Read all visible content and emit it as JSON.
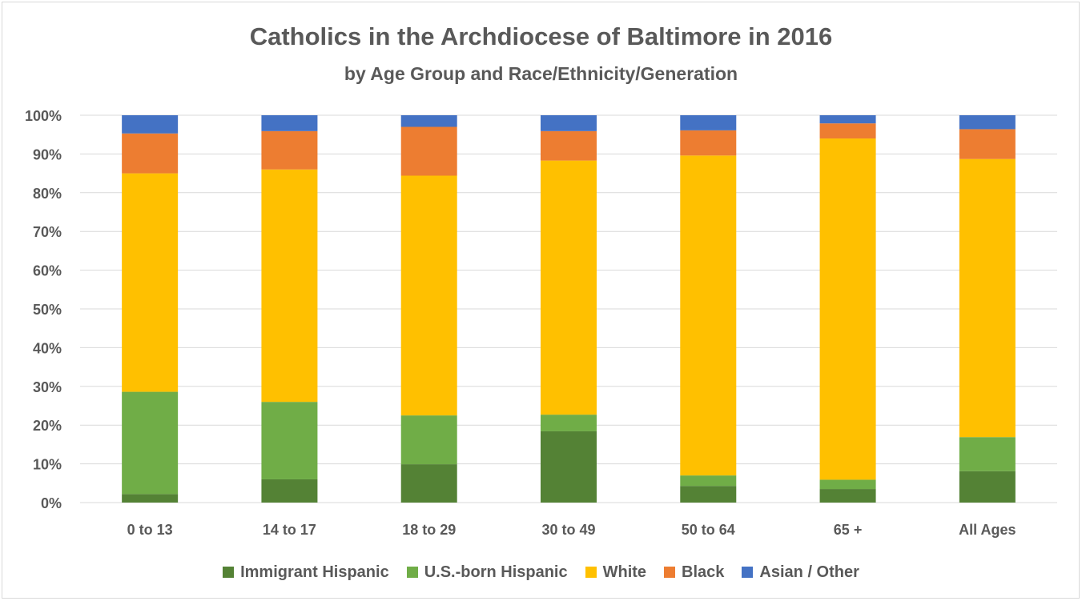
{
  "chart_data": {
    "type": "bar",
    "stacked": true,
    "title": "Catholics in the Archdiocese of Baltimore in 2016",
    "subtitle": "by Age Group and Race/Ethnicity/Generation",
    "xlabel": "",
    "ylabel": "",
    "ylim": [
      0,
      100
    ],
    "y_ticks": [
      "0%",
      "10%",
      "20%",
      "30%",
      "40%",
      "50%",
      "60%",
      "70%",
      "80%",
      "90%",
      "100%"
    ],
    "grid": true,
    "legend_position": "bottom",
    "categories": [
      "0 to 13",
      "14 to 17",
      "18 to 29",
      "30 to 49",
      "50 to 64",
      "65 +",
      "All Ages"
    ],
    "series": [
      {
        "name": "Immigrant Hispanic",
        "color": "#548235",
        "values": [
          2.2,
          6.0,
          9.9,
          18.4,
          4.3,
          3.5,
          8.1
        ]
      },
      {
        "name": "U.S.-born Hispanic",
        "color": "#70ad47",
        "values": [
          26.4,
          20.0,
          12.6,
          4.3,
          2.7,
          2.4,
          8.8
        ]
      },
      {
        "name": "White",
        "color": "#ffc000",
        "values": [
          56.4,
          60.0,
          61.9,
          65.6,
          82.6,
          88.1,
          71.8
        ]
      },
      {
        "name": "Black",
        "color": "#ed7d31",
        "values": [
          10.3,
          9.9,
          12.6,
          7.6,
          6.5,
          3.9,
          7.7
        ]
      },
      {
        "name": "Asian / Other",
        "color": "#4472c4",
        "values": [
          4.7,
          4.1,
          3.0,
          4.1,
          3.9,
          2.1,
          3.6
        ]
      }
    ]
  }
}
